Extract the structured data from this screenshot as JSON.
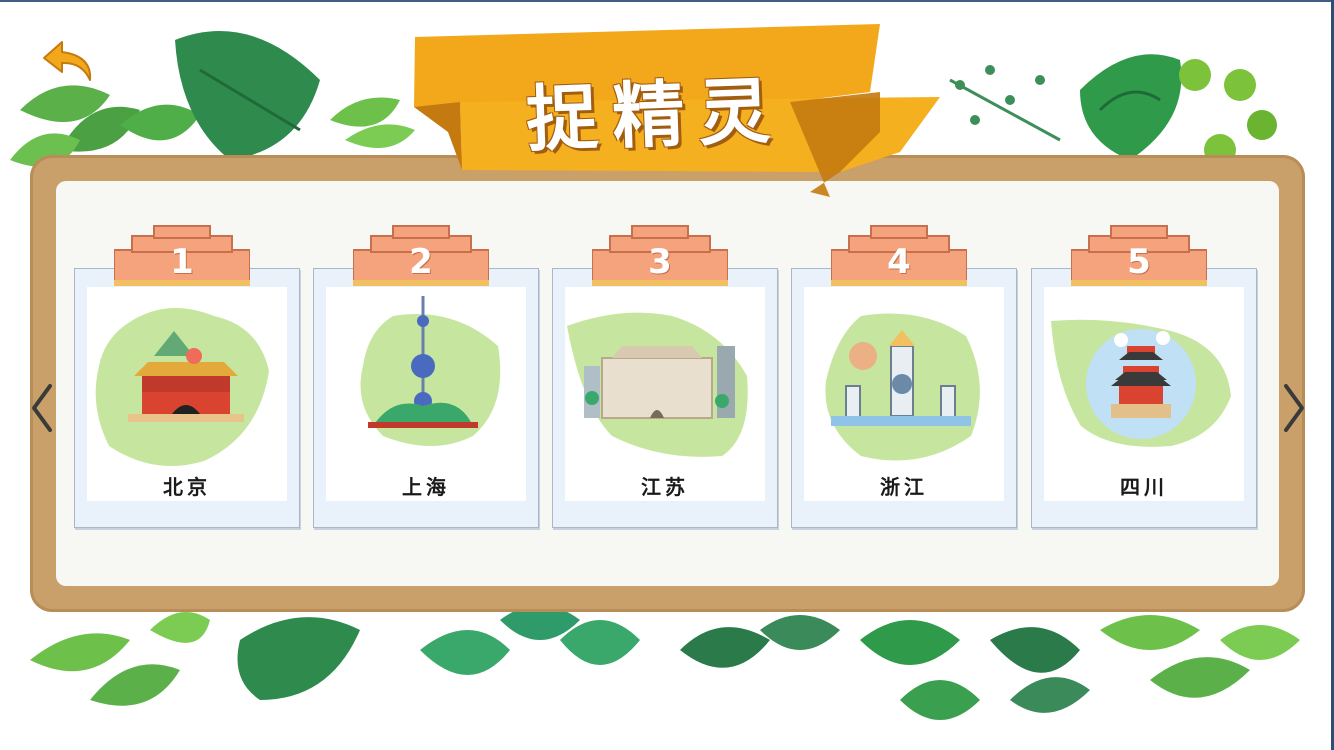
{
  "title": "捉精灵",
  "colors": {
    "banner": "#f2a81a",
    "banner_dark": "#c57a10",
    "board": "#c9a06a",
    "tab": "#f4a37d",
    "map_green": "#c6e6a0",
    "leaf": "#3f9a5a"
  },
  "icons": {
    "back": "back-arrow-icon",
    "prev": "chevron-left-icon",
    "next": "chevron-right-icon"
  },
  "cards": [
    {
      "number": "1",
      "name": "北京",
      "landmark": "tiananmen-icon"
    },
    {
      "number": "2",
      "name": "上海",
      "landmark": "oriental-pearl-tower-icon"
    },
    {
      "number": "3",
      "name": "江苏",
      "landmark": "mausoleum-hall-icon"
    },
    {
      "number": "4",
      "name": "浙江",
      "landmark": "three-pools-pagodas-icon"
    },
    {
      "number": "5",
      "name": "四川",
      "landmark": "pagoda-tower-icon"
    }
  ]
}
